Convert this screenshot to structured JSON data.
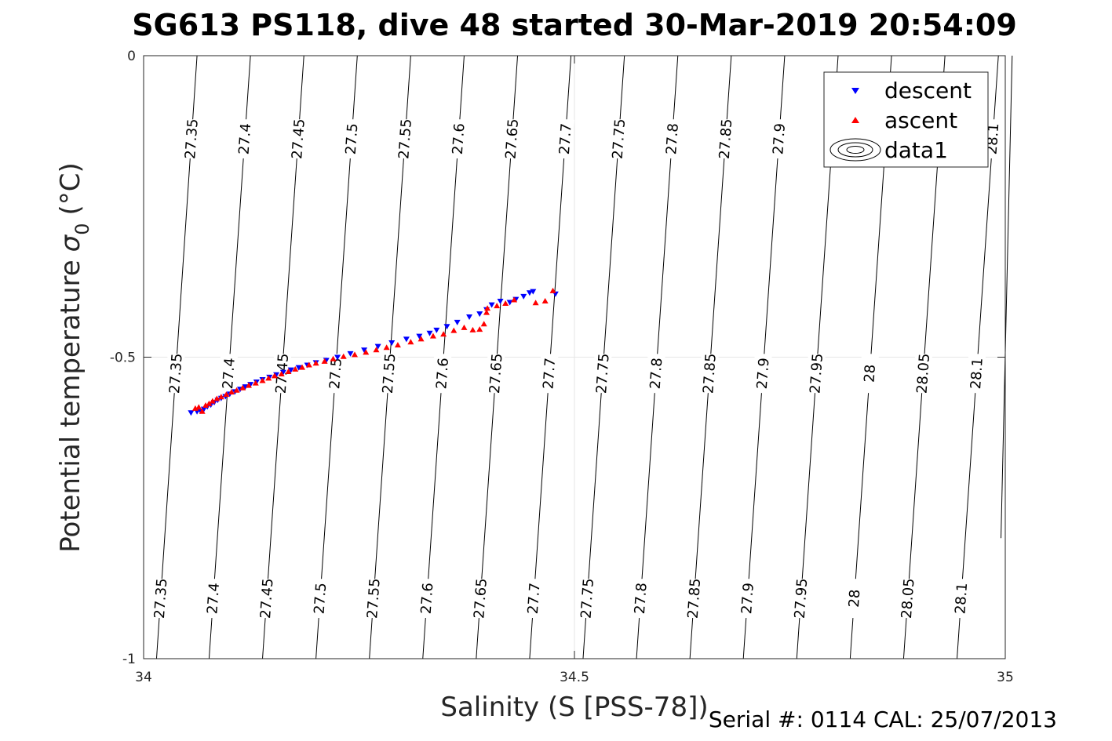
{
  "chart_data": {
    "type": "scatter",
    "title": "SG613 PS118, dive 48 started 30-Mar-2019 20:54:09",
    "xlabel": "Salinity (S [PSS-78])",
    "ylabel": "Potential temperature",
    "ylabel_symbol": "σ",
    "ylabel_subscript": "0",
    "ylabel_unit": "(°C)",
    "xlim": [
      34,
      35
    ],
    "ylim": [
      -1,
      0
    ],
    "xticks": [
      34,
      34.5,
      35
    ],
    "xtick_labels": [
      "34",
      "34.5",
      "35"
    ],
    "yticks": [
      0,
      -0.5,
      -1
    ],
    "ytick_labels": [
      "0",
      "-0.5",
      "-1"
    ],
    "grid": true,
    "legend_position": "top-right",
    "series": [
      {
        "name": "descent",
        "color": "#0000ff",
        "marker": "triangle-down",
        "points": [
          [
            34.055,
            -0.592
          ],
          [
            34.062,
            -0.59
          ],
          [
            34.066,
            -0.589
          ],
          [
            34.07,
            -0.586
          ],
          [
            34.074,
            -0.582
          ],
          [
            34.078,
            -0.579
          ],
          [
            34.082,
            -0.575
          ],
          [
            34.086,
            -0.571
          ],
          [
            34.09,
            -0.568
          ],
          [
            34.095,
            -0.565
          ],
          [
            34.1,
            -0.561
          ],
          [
            34.106,
            -0.557
          ],
          [
            34.112,
            -0.553
          ],
          [
            34.118,
            -0.549
          ],
          [
            34.124,
            -0.545
          ],
          [
            34.131,
            -0.541
          ],
          [
            34.138,
            -0.537
          ],
          [
            34.146,
            -0.533
          ],
          [
            34.154,
            -0.529
          ],
          [
            34.162,
            -0.525
          ],
          [
            34.171,
            -0.521
          ],
          [
            34.18,
            -0.517
          ],
          [
            34.19,
            -0.513
          ],
          [
            34.2,
            -0.509
          ],
          [
            34.212,
            -0.505
          ],
          [
            34.225,
            -0.5
          ],
          [
            34.24,
            -0.494
          ],
          [
            34.256,
            -0.488
          ],
          [
            34.272,
            -0.482
          ],
          [
            34.288,
            -0.476
          ],
          [
            34.305,
            -0.47
          ],
          [
            34.32,
            -0.465
          ],
          [
            34.332,
            -0.46
          ],
          [
            34.34,
            -0.455
          ],
          [
            34.352,
            -0.449
          ],
          [
            34.364,
            -0.442
          ],
          [
            34.378,
            -0.433
          ],
          [
            34.39,
            -0.428
          ],
          [
            34.398,
            -0.421
          ],
          [
            34.404,
            -0.413
          ],
          [
            34.414,
            -0.407
          ],
          [
            34.425,
            -0.409
          ],
          [
            34.432,
            -0.404
          ],
          [
            34.441,
            -0.399
          ],
          [
            34.448,
            -0.393
          ],
          [
            34.452,
            -0.391
          ],
          [
            34.478,
            -0.395
          ]
        ]
      },
      {
        "name": "ascent",
        "color": "#ff0000",
        "marker": "triangle-up",
        "points": [
          [
            34.06,
            -0.585
          ],
          [
            34.064,
            -0.583
          ],
          [
            34.068,
            -0.59
          ],
          [
            34.072,
            -0.58
          ],
          [
            34.076,
            -0.577
          ],
          [
            34.08,
            -0.573
          ],
          [
            34.085,
            -0.569
          ],
          [
            34.09,
            -0.566
          ],
          [
            34.096,
            -0.562
          ],
          [
            34.102,
            -0.558
          ],
          [
            34.108,
            -0.555
          ],
          [
            34.115,
            -0.551
          ],
          [
            34.122,
            -0.547
          ],
          [
            34.13,
            -0.543
          ],
          [
            34.138,
            -0.539
          ],
          [
            34.145,
            -0.535
          ],
          [
            34.152,
            -0.531
          ],
          [
            34.16,
            -0.528
          ],
          [
            34.168,
            -0.524
          ],
          [
            34.176,
            -0.52
          ],
          [
            34.184,
            -0.517
          ],
          [
            34.192,
            -0.513
          ],
          [
            34.2,
            -0.51
          ],
          [
            34.21,
            -0.507
          ],
          [
            34.22,
            -0.503
          ],
          [
            34.232,
            -0.499
          ],
          [
            34.245,
            -0.496
          ],
          [
            34.258,
            -0.492
          ],
          [
            34.27,
            -0.488
          ],
          [
            34.282,
            -0.484
          ],
          [
            34.295,
            -0.48
          ],
          [
            34.31,
            -0.475
          ],
          [
            34.322,
            -0.47
          ],
          [
            34.336,
            -0.465
          ],
          [
            34.348,
            -0.462
          ],
          [
            34.36,
            -0.456
          ],
          [
            34.372,
            -0.451
          ],
          [
            34.382,
            -0.455
          ],
          [
            34.39,
            -0.454
          ],
          [
            34.395,
            -0.445
          ],
          [
            34.398,
            -0.426
          ],
          [
            34.399,
            -0.419
          ],
          [
            34.41,
            -0.415
          ],
          [
            34.42,
            -0.411
          ],
          [
            34.43,
            -0.405
          ],
          [
            34.455,
            -0.41
          ],
          [
            34.466,
            -0.407
          ],
          [
            34.475,
            -0.39
          ]
        ]
      }
    ],
    "contours": {
      "name": "data1",
      "levels": [
        "27.35",
        "27.4",
        "27.45",
        "27.5",
        "27.55",
        "27.6",
        "27.65",
        "27.7",
        "27.75",
        "27.8",
        "27.85",
        "27.9",
        "27.95",
        "28",
        "28.05",
        "28.1"
      ],
      "bottom_salinity": [
        34.015,
        34.076,
        34.138,
        34.2,
        34.262,
        34.324,
        34.386,
        34.448,
        34.51,
        34.572,
        34.634,
        34.696,
        34.758,
        34.82,
        34.882,
        34.944
      ],
      "top_salinity": [
        34.062,
        34.124,
        34.186,
        34.248,
        34.31,
        34.372,
        34.434,
        34.496,
        34.558,
        34.62,
        34.682,
        34.744,
        34.806,
        34.868,
        34.93,
        34.992
      ],
      "extra_right_line": [
        34.995,
        35.008
      ]
    },
    "top_row_labels": [
      "27.35",
      "27.4",
      "27.45",
      "27.5",
      "27.55",
      "27.6",
      "27.65",
      "27.7",
      "27.75",
      "27.8",
      "27.85",
      "27.9",
      "28.1"
    ],
    "middle_row_labels": [
      "27.35",
      "27.4",
      "27.45",
      "27.5",
      "27.55",
      "27.6",
      "27.65",
      "27.7",
      "27.75",
      "27.8",
      "27.85",
      "27.9",
      "27.95",
      "28",
      "28.05",
      "28.1"
    ],
    "bottom_row_labels": [
      "27.35",
      "27.4",
      "27.45",
      "27.5",
      "27.55",
      "27.6",
      "27.65",
      "27.7",
      "27.75",
      "27.8",
      "27.85",
      "27.9",
      "27.95",
      "28",
      "28.05",
      "28.1"
    ],
    "legend": [
      {
        "label": "descent"
      },
      {
        "label": "ascent"
      },
      {
        "label": "data1"
      }
    ]
  },
  "footer": {
    "text": "Serial #: 0114  CAL: 25/07/2013"
  }
}
